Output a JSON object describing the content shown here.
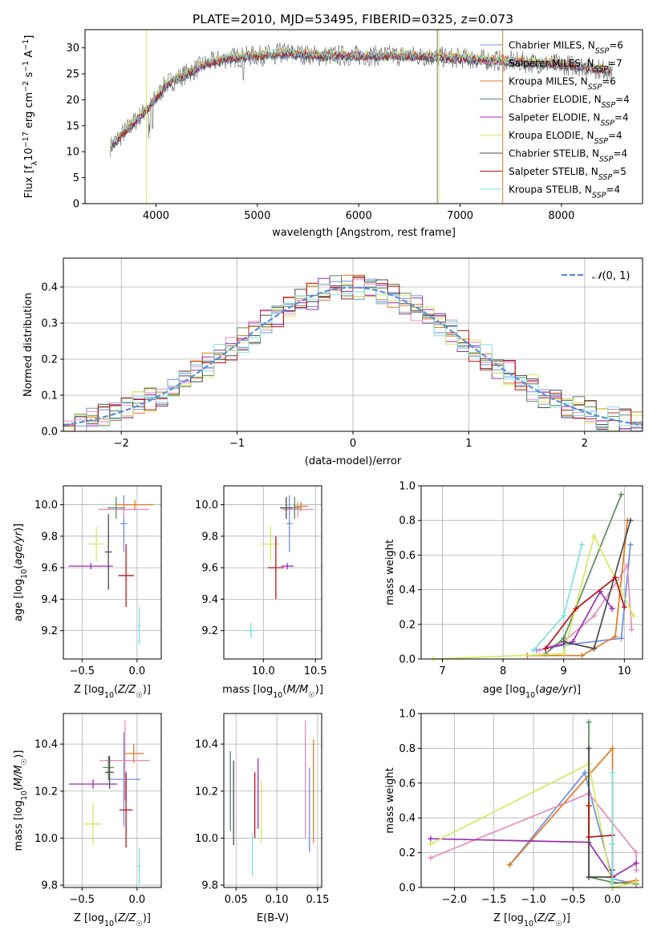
{
  "figure_title": "PLATE=2010, MJD=53495, FIBERID=0325, z=0.073",
  "colors": {
    "Chabrier MILES": "#6f8fe0",
    "Salpeter MILES": "#e88dbd",
    "Kroupa MILES": "#e07b28",
    "Chabrier ELODIE": "#5b8a5e",
    "Salpeter ELODIE": "#9a2fb5",
    "Kroupa ELODIE": "#d6e862",
    "Chabrier STELIB": "#4a4a4a",
    "Salpeter STELIB": "#b81414",
    "Kroupa STELIB": "#7ee0e0",
    "gaussian": "#5a8fd6"
  },
  "chart_data": [
    {
      "id": "spectrum",
      "type": "line",
      "title": "PLATE=2010, MJD=53495, FIBERID=0325, z=0.073",
      "xlabel": "wavelength [Angstrom, rest frame]",
      "ylabel": "Flux [f_λ10^-17 erg cm^-2 s^-1 A^-1]",
      "xlim": [
        3300,
        8800
      ],
      "ylim": [
        0,
        33.5
      ],
      "xticks": [
        4000,
        5000,
        6000,
        7000,
        8000
      ],
      "yticks": [
        0,
        5,
        10,
        15,
        20,
        25,
        30
      ],
      "grid": false,
      "legend_position": "top-right",
      "continuum": {
        "x": [
          3550,
          3650,
          3800,
          3950,
          4100,
          4300,
          4500,
          4700,
          5000,
          5300,
          5600,
          6000,
          6500,
          7000,
          7400,
          7800,
          8200,
          8500
        ],
        "y": [
          11,
          13,
          16,
          19,
          23,
          25,
          27,
          28,
          28.5,
          29,
          28.5,
          28.5,
          28.5,
          28,
          27.5,
          27,
          26.5,
          25.5
        ]
      },
      "legend": [
        {
          "label": "Chabrier MILES, N_SSP=6",
          "color": "#6f8fe0"
        },
        {
          "label": "Salpeter MILES, N_SSP=7",
          "color": "#e88dbd"
        },
        {
          "label": "Kroupa MILES, N_SSP=6",
          "color": "#e07b28"
        },
        {
          "label": "Chabrier ELODIE, N_SSP=4",
          "color": "#5b8a5e"
        },
        {
          "label": "Salpeter ELODIE, N_SSP=4",
          "color": "#9a2fb5"
        },
        {
          "label": "Kroupa ELODIE, N_SSP=4",
          "color": "#d6e862"
        },
        {
          "label": "Chabrier STELIB, N_SSP=4",
          "color": "#4a4a4a"
        },
        {
          "label": "Salpeter STELIB, N_SSP=5",
          "color": "#b81414"
        },
        {
          "label": "Kroupa STELIB, N_SSP=4",
          "color": "#7ee0e0"
        }
      ]
    },
    {
      "id": "residuals",
      "type": "line",
      "xlabel": "(data-model)/error",
      "ylabel": "Normed distribution",
      "xlim": [
        -2.5,
        2.5
      ],
      "ylim": [
        0,
        0.48
      ],
      "xticks": [
        -2,
        -1,
        0,
        1,
        2
      ],
      "yticks": [
        0.0,
        0.1,
        0.2,
        0.3,
        0.4
      ],
      "grid": true,
      "legend_position": "top-right",
      "legend_label": "N(0,1)",
      "gaussian": {
        "mean": 0,
        "sigma": 1
      }
    },
    {
      "id": "age_vs_Z",
      "type": "scatter",
      "xlabel": "Z [log10(Z/Z☉)]",
      "ylabel": "age  [log10(age/yr)]",
      "xlim": [
        -0.67,
        0.22
      ],
      "ylim": [
        9.02,
        10.12
      ],
      "xticks": [
        -0.5,
        0.0
      ],
      "yticks": [
        9.2,
        9.4,
        9.6,
        9.8,
        10.0
      ],
      "grid": true,
      "points": [
        {
          "model": "Chabrier MILES",
          "x": -0.12,
          "xerr": 0.03,
          "y": 9.88,
          "yerr": 0.18
        },
        {
          "model": "Salpeter MILES",
          "x": -0.12,
          "xerr": 0.23,
          "y": 9.97,
          "yerr": 0.05
        },
        {
          "model": "Kroupa MILES",
          "x": -0.02,
          "xerr": 0.17,
          "y": 10.0,
          "yerr": 0.03
        },
        {
          "model": "Chabrier ELODIE",
          "x": -0.19,
          "xerr": 0.08,
          "y": 9.98,
          "yerr": 0.07
        },
        {
          "model": "Salpeter ELODIE",
          "x": -0.42,
          "xerr": 0.2,
          "y": 9.61,
          "yerr": 0.02
        },
        {
          "model": "Kroupa ELODIE",
          "x": -0.37,
          "xerr": 0.07,
          "y": 9.75,
          "yerr": 0.11
        },
        {
          "model": "Chabrier STELIB",
          "x": -0.26,
          "xerr": 0.03,
          "y": 9.7,
          "yerr": 0.24
        },
        {
          "model": "Salpeter STELIB",
          "x": -0.1,
          "xerr": 0.07,
          "y": 9.55,
          "yerr": 0.2
        },
        {
          "model": "Kroupa STELIB",
          "x": 0.02,
          "xerr": 0.015,
          "y": 9.23,
          "yerr": 0.12
        }
      ]
    },
    {
      "id": "age_vs_mass",
      "type": "scatter",
      "xlabel": "mass [log10(M/M☉)]",
      "ylabel": "",
      "xlim": [
        9.62,
        10.56
      ],
      "ylim": [
        9.02,
        10.12
      ],
      "xticks": [
        10.0,
        10.5
      ],
      "yticks": [
        9.2,
        9.4,
        9.6,
        9.8,
        10.0
      ],
      "grid": true,
      "points": [
        {
          "model": "Chabrier MILES",
          "x": 10.25,
          "xerr": 0.03,
          "y": 9.88,
          "yerr": 0.18
        },
        {
          "model": "Salpeter MILES",
          "x": 10.33,
          "xerr": 0.15,
          "y": 9.97,
          "yerr": 0.05
        },
        {
          "model": "Kroupa MILES",
          "x": 10.36,
          "xerr": 0.07,
          "y": 9.99,
          "yerr": 0.03
        },
        {
          "model": "Chabrier ELODIE",
          "x": 10.3,
          "xerr": 0.06,
          "y": 9.98,
          "yerr": 0.07
        },
        {
          "model": "Salpeter ELODIE",
          "x": 10.23,
          "xerr": 0.06,
          "y": 9.61,
          "yerr": 0.02
        },
        {
          "model": "Kroupa ELODIE",
          "x": 10.07,
          "xerr": 0.1,
          "y": 9.75,
          "yerr": 0.11
        },
        {
          "model": "Chabrier STELIB",
          "x": 10.22,
          "xerr": 0.06,
          "y": 9.98,
          "yerr": 0.07
        },
        {
          "model": "Salpeter STELIB",
          "x": 10.12,
          "xerr": 0.08,
          "y": 9.6,
          "yerr": 0.2
        },
        {
          "model": "Kroupa STELIB",
          "x": 9.88,
          "xerr": 0.05,
          "y": 9.2,
          "yerr": 0.05
        }
      ]
    },
    {
      "id": "weight_vs_age",
      "type": "line",
      "xlabel": "age  [log10(age/yr)]",
      "ylabel": "mass weight",
      "xlim": [
        6.65,
        10.3
      ],
      "ylim": [
        0,
        1.0
      ],
      "xticks": [
        7,
        8,
        9,
        10
      ],
      "yticks": [
        0.0,
        0.2,
        0.4,
        0.6,
        0.8,
        1.0
      ],
      "grid": true,
      "series": [
        {
          "model": "Chabrier MILES",
          "x": [
            8.55,
            9.0,
            9.95,
            10.1
          ],
          "y": [
            0.05,
            0.08,
            0.12,
            0.66
          ]
        },
        {
          "model": "Salpeter MILES",
          "x": [
            8.6,
            9.0,
            9.5,
            10.05,
            10.12
          ],
          "y": [
            0.05,
            0.1,
            0.25,
            0.54,
            0.17
          ]
        },
        {
          "model": "Kroupa MILES",
          "x": [
            8.4,
            9.3,
            9.85,
            10.05
          ],
          "y": [
            0.02,
            0.02,
            0.13,
            0.8
          ]
        },
        {
          "model": "Chabrier ELODIE",
          "x": [
            8.7,
            9.0,
            9.95
          ],
          "y": [
            0.03,
            0.12,
            0.95
          ]
        },
        {
          "model": "Salpeter ELODIE",
          "x": [
            8.7,
            9.15,
            9.6,
            9.8
          ],
          "y": [
            0.06,
            0.1,
            0.39,
            0.29
          ]
        },
        {
          "model": "Kroupa ELODIE",
          "x": [
            6.85,
            9.0,
            9.5,
            10.15
          ],
          "y": [
            0.0,
            0.03,
            0.71,
            0.25
          ]
        },
        {
          "model": "Chabrier STELIB",
          "x": [
            9.0,
            9.5,
            10.1
          ],
          "y": [
            0.1,
            0.06,
            0.8
          ]
        },
        {
          "model": "Salpeter STELIB",
          "x": [
            8.7,
            9.2,
            9.85,
            10.0
          ],
          "y": [
            0.06,
            0.29,
            0.47,
            0.3
          ]
        },
        {
          "model": "Kroupa STELIB",
          "x": [
            8.5,
            9.0,
            9.3
          ],
          "y": [
            0.05,
            0.25,
            0.66
          ]
        }
      ]
    },
    {
      "id": "mass_vs_Z",
      "type": "scatter",
      "xlabel": "Z [log10(Z/Z☉)]",
      "ylabel": "mass [log10(M/M☉)]",
      "xlim": [
        -0.67,
        0.22
      ],
      "ylim": [
        9.79,
        10.53
      ],
      "xticks": [
        -0.5,
        0.0
      ],
      "yticks": [
        9.8,
        10.0,
        10.2,
        10.4
      ],
      "grid": true,
      "points": [
        {
          "model": "Chabrier MILES",
          "x": -0.12,
          "xerr": 0.15,
          "y": 10.25,
          "yerr": 0.2
        },
        {
          "model": "Salpeter MILES",
          "x": -0.11,
          "xerr": 0.23,
          "y": 10.33,
          "yerr": 0.17
        },
        {
          "model": "Kroupa MILES",
          "x": -0.03,
          "xerr": 0.09,
          "y": 10.36,
          "yerr": 0.04
        },
        {
          "model": "Chabrier ELODIE",
          "x": -0.26,
          "xerr": 0.05,
          "y": 10.3,
          "yerr": 0.05
        },
        {
          "model": "Salpeter ELODIE",
          "x": -0.4,
          "xerr": 0.22,
          "y": 10.23,
          "yerr": 0.02
        },
        {
          "model": "Kroupa ELODIE",
          "x": -0.4,
          "xerr": 0.08,
          "y": 10.06,
          "yerr": 0.09
        },
        {
          "model": "Chabrier STELIB",
          "x": -0.25,
          "xerr": 0.04,
          "y": 10.28,
          "yerr": 0.07
        },
        {
          "model": "Salpeter STELIB",
          "x": -0.1,
          "xerr": 0.06,
          "y": 10.12,
          "yerr": 0.16
        },
        {
          "model": "Kroupa STELIB",
          "x": 0.02,
          "xerr": 0.015,
          "y": 9.88,
          "yerr": 0.08
        }
      ]
    },
    {
      "id": "EBV_dots",
      "type": "scatter",
      "xlabel": "E(B-V)",
      "ylabel": "",
      "xlim": [
        0.035,
        0.155
      ],
      "ylim": [
        9.79,
        10.53
      ],
      "xticks": [
        0.05,
        0.1,
        0.15
      ],
      "yticks": [
        9.8,
        10.0,
        10.2,
        10.4
      ],
      "grid": true,
      "points": [
        {
          "model": "Chabrier MILES",
          "x": 0.14,
          "y": 10.12,
          "yerr": 0.18
        },
        {
          "model": "Salpeter MILES",
          "x": 0.135,
          "y": 10.25,
          "yerr": 0.25
        },
        {
          "model": "Kroupa MILES",
          "x": 0.145,
          "y": 10.2,
          "yerr": 0.22
        },
        {
          "model": "Chabrier ELODIE",
          "x": 0.043,
          "y": 10.2,
          "yerr": 0.17
        },
        {
          "model": "Salpeter ELODIE",
          "x": 0.077,
          "y": 10.19,
          "yerr": 0.15
        },
        {
          "model": "Kroupa ELODIE",
          "x": 0.081,
          "y": 10.11,
          "yerr": 0.13
        },
        {
          "model": "Chabrier STELIB",
          "x": 0.047,
          "y": 10.15,
          "yerr": 0.18
        },
        {
          "model": "Salpeter STELIB",
          "x": 0.073,
          "y": 10.14,
          "yerr": 0.14
        },
        {
          "model": "Kroupa STELIB",
          "x": 0.07,
          "y": 9.93,
          "yerr": 0.09
        }
      ]
    },
    {
      "id": "weight_vs_Z",
      "type": "line",
      "xlabel": "Z [log10(Z/Z☉)]",
      "ylabel": "mass weight",
      "xlim": [
        -2.42,
        0.38
      ],
      "ylim": [
        0,
        1.0
      ],
      "xticks": [
        -2.0,
        -1.5,
        -1.0,
        -0.5,
        0.0
      ],
      "yticks": [
        0.0,
        0.2,
        0.4,
        0.6,
        0.8,
        1.0
      ],
      "grid": true,
      "series": [
        {
          "model": "Chabrier MILES",
          "x": [
            -1.3,
            -0.35,
            0.0,
            0.3
          ],
          "y": [
            0.13,
            0.66,
            0.05,
            0.02
          ]
        },
        {
          "model": "Salpeter MILES",
          "x": [
            -2.3,
            -0.3,
            0.3,
            0.3
          ],
          "y": [
            0.17,
            0.54,
            0.2,
            0.1
          ]
        },
        {
          "model": "Kroupa MILES",
          "x": [
            -1.3,
            0.0,
            0.0,
            0.3
          ],
          "y": [
            0.13,
            0.8,
            0.02,
            0.04
          ]
        },
        {
          "model": "Chabrier ELODIE",
          "x": [
            -0.3,
            -0.3,
            0.0,
            0.3
          ],
          "y": [
            0.95,
            0.06,
            0.03,
            0.02
          ]
        },
        {
          "model": "Salpeter ELODIE",
          "x": [
            -2.3,
            -0.3,
            0.0,
            0.3
          ],
          "y": [
            0.28,
            0.26,
            0.06,
            0.14
          ]
        },
        {
          "model": "Kroupa ELODIE",
          "x": [
            -2.3,
            -0.3,
            0.0,
            0.3
          ],
          "y": [
            0.25,
            0.71,
            0.0,
            0.03
          ]
        },
        {
          "model": "Chabrier STELIB",
          "x": [
            -0.3,
            -0.3,
            0.0,
            0.0
          ],
          "y": [
            0.8,
            0.06,
            0.06,
            0.1
          ]
        },
        {
          "model": "Salpeter STELIB",
          "x": [
            -0.3,
            -0.3,
            0.0,
            0.0
          ],
          "y": [
            0.47,
            0.29,
            0.3,
            0.06
          ]
        },
        {
          "model": "Kroupa STELIB",
          "x": [
            0.0,
            0.0,
            0.0,
            0.0
          ],
          "y": [
            0.66,
            0.25,
            0.05,
            0.02
          ]
        }
      ]
    }
  ]
}
